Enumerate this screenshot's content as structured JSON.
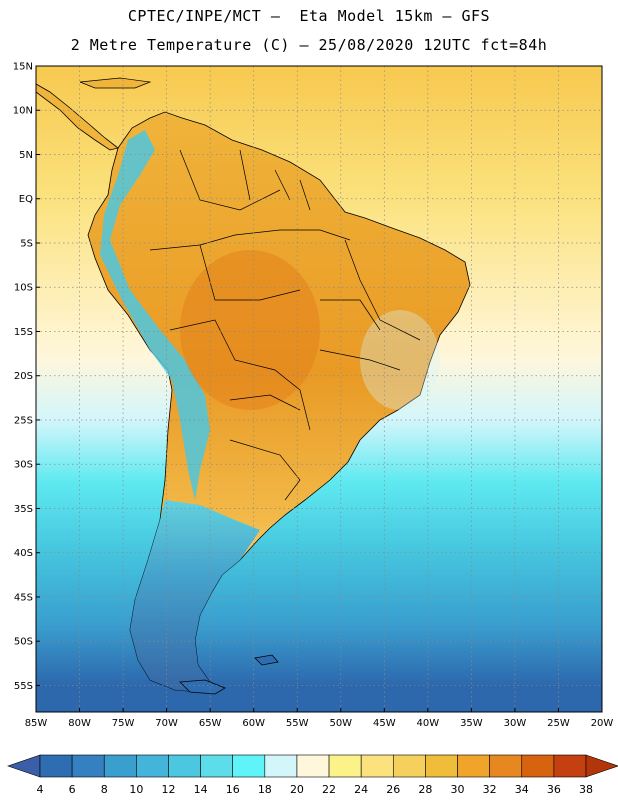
{
  "header": {
    "line1": "CPTEC/INPE/MCT –  Eta Model 15km – GFS",
    "line2": "2 Metre Temperature (C) – 25/08/2020 12UTC fct=84h"
  },
  "map": {
    "lat_labels": [
      "15N",
      "10N",
      "5N",
      "EQ",
      "5S",
      "10S",
      "15S",
      "20S",
      "25S",
      "30S",
      "35S",
      "40S",
      "45S",
      "50S",
      "55S"
    ],
    "lon_labels": [
      "85W",
      "80W",
      "75W",
      "70W",
      "65W",
      "60W",
      "55W",
      "50W",
      "45W",
      "40W",
      "35W",
      "30W",
      "25W",
      "20W"
    ],
    "lat_range": [
      15,
      -58
    ],
    "lon_range": [
      -85,
      -20
    ],
    "gridlines": true,
    "gridline_style": "dotted",
    "ocean_gradient_north_to_south": [
      {
        "lat": 15,
        "color": "#f7c94f"
      },
      {
        "lat": 0,
        "color": "#fbe27e"
      },
      {
        "lat": -18,
        "color": "#fff7dc"
      },
      {
        "lat": -25,
        "color": "#d3f6fb"
      },
      {
        "lat": -32,
        "color": "#5ee9f0"
      },
      {
        "lat": -40,
        "color": "#45c5de"
      },
      {
        "lat": -48,
        "color": "#3a9fcf"
      },
      {
        "lat": -55,
        "color": "#2d68ad"
      }
    ],
    "land_color": "#f0a52a",
    "land_hot_color": "#e7871f",
    "land_cool_color": "#f9de7b",
    "andes_color": "#4cc7e0",
    "patagonia_color": "#2f6db3"
  },
  "colorbar": {
    "ticks": [
      "4",
      "6",
      "8",
      "10",
      "12",
      "14",
      "16",
      "18",
      "20",
      "22",
      "24",
      "26",
      "28",
      "30",
      "32",
      "34",
      "36",
      "38"
    ],
    "colors": [
      "#3a5fa8",
      "#2f6db3",
      "#3580c0",
      "#3a9fcf",
      "#45b4da",
      "#4cc7e0",
      "#5ddcea",
      "#5ff5f8",
      "#d3f6fb",
      "#fff7dc",
      "#fcf28a",
      "#fbe27e",
      "#f5d05c",
      "#f0bd3a",
      "#f0a52a",
      "#e7871f",
      "#d8630f",
      "#c44010",
      "#b3350a"
    ]
  }
}
